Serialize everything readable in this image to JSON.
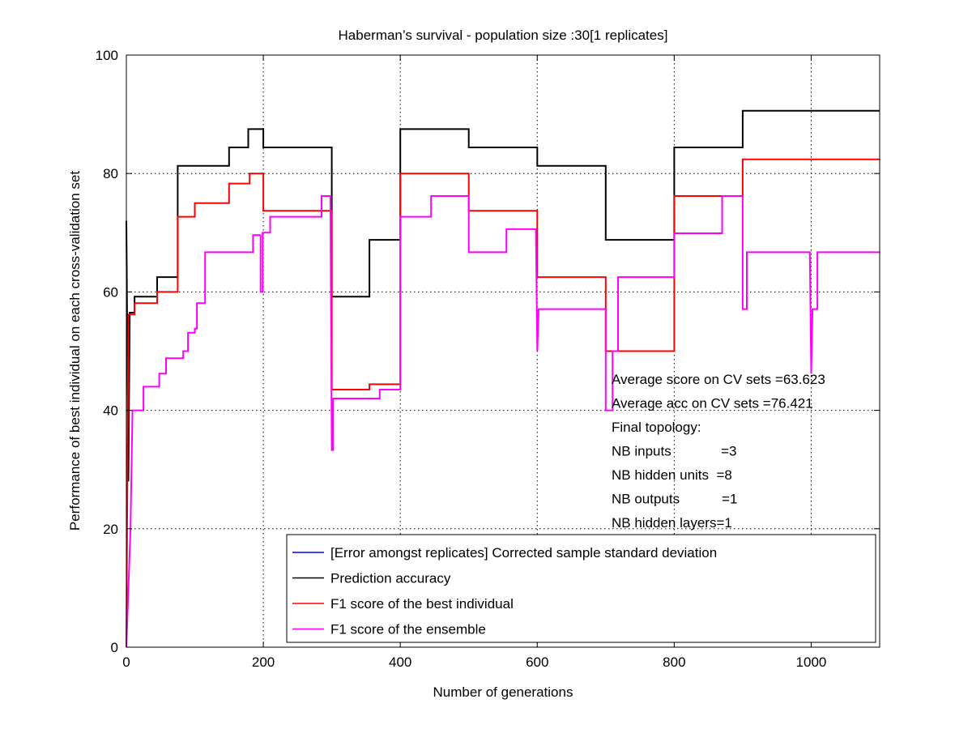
{
  "chart_data": {
    "type": "line",
    "title": "Haberman’s survival - population size :30[1 replicates]",
    "xlabel": "Number of generations",
    "ylabel": "Performance of best individual on each cross-validation set",
    "xlim": [
      0,
      1100
    ],
    "ylim": [
      0,
      100
    ],
    "xticks": [
      0,
      200,
      400,
      600,
      800,
      1000
    ],
    "yticks": [
      0,
      20,
      40,
      60,
      80,
      100
    ],
    "grid": true,
    "legend_position": "bottom-right",
    "series": [
      {
        "name": "[Error amongst replicates] Corrected sample standard deviation",
        "color": "#0000ff",
        "points": []
      },
      {
        "name": "Prediction accuracy",
        "color": "#000000",
        "points": [
          [
            0,
            72
          ],
          [
            3,
            28
          ],
          [
            5,
            56.5
          ],
          [
            12,
            56.5
          ],
          [
            12,
            59.2
          ],
          [
            45,
            59.2
          ],
          [
            45,
            62.5
          ],
          [
            75,
            62.5
          ],
          [
            75,
            81.3
          ],
          [
            150,
            81.3
          ],
          [
            150,
            84.4
          ],
          [
            178,
            84.4
          ],
          [
            178,
            87.5
          ],
          [
            200,
            87.5
          ],
          [
            200,
            84.4
          ],
          [
            300,
            84.4
          ],
          [
            300,
            59.2
          ],
          [
            355,
            59.2
          ],
          [
            355,
            68.8
          ],
          [
            400,
            68.8
          ],
          [
            400,
            87.5
          ],
          [
            500,
            87.5
          ],
          [
            500,
            84.4
          ],
          [
            600,
            84.4
          ],
          [
            600,
            81.3
          ],
          [
            700,
            81.3
          ],
          [
            700,
            68.8
          ],
          [
            800,
            68.8
          ],
          [
            800,
            84.4
          ],
          [
            900,
            84.4
          ],
          [
            900,
            90.6
          ],
          [
            1100,
            90.6
          ]
        ]
      },
      {
        "name": "F1 score of the best individual",
        "color": "#ff0000",
        "points": [
          [
            0,
            0
          ],
          [
            3,
            56.2
          ],
          [
            12,
            56.2
          ],
          [
            12,
            58.1
          ],
          [
            45,
            58.1
          ],
          [
            45,
            60
          ],
          [
            75,
            60
          ],
          [
            75,
            72.7
          ],
          [
            100,
            72.7
          ],
          [
            100,
            75
          ],
          [
            150,
            75
          ],
          [
            150,
            78.3
          ],
          [
            180,
            78.3
          ],
          [
            180,
            80
          ],
          [
            200,
            80
          ],
          [
            200,
            73.7
          ],
          [
            300,
            73.7
          ],
          [
            300,
            43.5
          ],
          [
            355,
            43.5
          ],
          [
            355,
            44.4
          ],
          [
            400,
            44.4
          ],
          [
            400,
            80
          ],
          [
            500,
            80
          ],
          [
            500,
            73.7
          ],
          [
            600,
            73.7
          ],
          [
            600,
            62.5
          ],
          [
            700,
            62.5
          ],
          [
            700,
            50
          ],
          [
            800,
            50
          ],
          [
            800,
            76.2
          ],
          [
            900,
            76.2
          ],
          [
            900,
            82.4
          ],
          [
            1100,
            82.4
          ]
        ]
      },
      {
        "name": "F1 score of the ensemble",
        "color": "#ff00ff",
        "points": [
          [
            0,
            0
          ],
          [
            6,
            20
          ],
          [
            9,
            40
          ],
          [
            25,
            40
          ],
          [
            25,
            44
          ],
          [
            48,
            44
          ],
          [
            48,
            46.2
          ],
          [
            58,
            46.2
          ],
          [
            58,
            48.8
          ],
          [
            83,
            48.8
          ],
          [
            83,
            50
          ],
          [
            90,
            50
          ],
          [
            90,
            53.1
          ],
          [
            100,
            53.1
          ],
          [
            100,
            53.8
          ],
          [
            103,
            53.8
          ],
          [
            103,
            58.1
          ],
          [
            115,
            58.1
          ],
          [
            115,
            66.7
          ],
          [
            185,
            66.7
          ],
          [
            185,
            69.6
          ],
          [
            196,
            69.6
          ],
          [
            196,
            60
          ],
          [
            199,
            60
          ],
          [
            199,
            70
          ],
          [
            210,
            70
          ],
          [
            210,
            72.7
          ],
          [
            285,
            72.7
          ],
          [
            285,
            76.2
          ],
          [
            298,
            76.2
          ],
          [
            300,
            33.3
          ],
          [
            302,
            33.3
          ],
          [
            302,
            42
          ],
          [
            370,
            42
          ],
          [
            370,
            43.5
          ],
          [
            400,
            43.5
          ],
          [
            400,
            72.7
          ],
          [
            445,
            72.7
          ],
          [
            445,
            76.2
          ],
          [
            500,
            76.2
          ],
          [
            500,
            66.7
          ],
          [
            555,
            66.7
          ],
          [
            555,
            70.6
          ],
          [
            598,
            70.6
          ],
          [
            600,
            50
          ],
          [
            602,
            57.1
          ],
          [
            700,
            57.1
          ],
          [
            700,
            40
          ],
          [
            710,
            40
          ],
          [
            710,
            50
          ],
          [
            718,
            50
          ],
          [
            718,
            62.5
          ],
          [
            800,
            62.5
          ],
          [
            800,
            69.9
          ],
          [
            870,
            69.9
          ],
          [
            870,
            76.2
          ],
          [
            900,
            76.2
          ],
          [
            900,
            57.1
          ],
          [
            906,
            57.1
          ],
          [
            906,
            66.7
          ],
          [
            998,
            66.7
          ],
          [
            1000,
            46.2
          ],
          [
            1002,
            57.1
          ],
          [
            1009,
            57.1
          ],
          [
            1009,
            66.7
          ],
          [
            1100,
            66.7
          ]
        ]
      }
    ],
    "annotations": [
      "Average score on CV sets =63.623",
      "Average acc on CV sets =76.421",
      "Final topology:",
      "NB inputs             =3",
      "NB hidden units  =8",
      "NB outputs           =1",
      "NB hidden layers=1"
    ]
  }
}
